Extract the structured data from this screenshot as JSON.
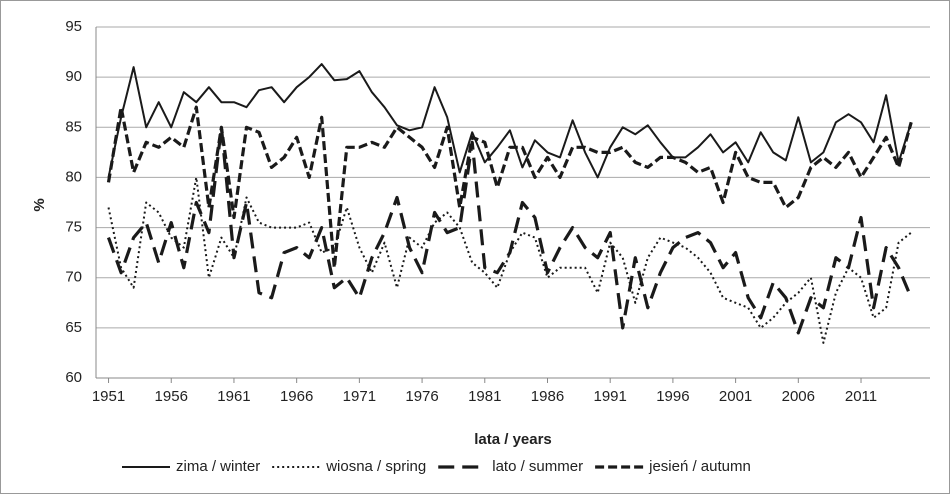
{
  "chart_data": {
    "type": "line",
    "ylabel": "%",
    "xlabel": "lata / years",
    "x": [
      1951,
      1952,
      1953,
      1954,
      1955,
      1956,
      1957,
      1958,
      1959,
      1960,
      1961,
      1962,
      1963,
      1964,
      1965,
      1966,
      1967,
      1968,
      1969,
      1970,
      1971,
      1972,
      1973,
      1974,
      1975,
      1976,
      1977,
      1978,
      1979,
      1980,
      1981,
      1982,
      1983,
      1984,
      1985,
      1986,
      1987,
      1988,
      1989,
      1990,
      1991,
      1992,
      1993,
      1994,
      1995,
      1996,
      1997,
      1998,
      1999,
      2000,
      2001,
      2002,
      2003,
      2004,
      2005,
      2006,
      2007,
      2008,
      2009,
      2010,
      2011,
      2012,
      2013,
      2014,
      2015
    ],
    "xlim": [
      1950,
      2016.5
    ],
    "xticks": [
      1951,
      1956,
      1961,
      1966,
      1971,
      1976,
      1981,
      1986,
      1991,
      1996,
      2001,
      2006,
      2011
    ],
    "ylim": [
      60,
      95
    ],
    "yticks": [
      60,
      65,
      70,
      75,
      80,
      85,
      90,
      95
    ],
    "grid": true,
    "legend": "bottom",
    "series": [
      {
        "name": "zima / winter",
        "color": "#1a1a1a",
        "values": [
          80,
          86,
          91,
          85,
          87.5,
          85,
          88.5,
          87.5,
          89,
          87.5,
          87.5,
          87,
          88.7,
          89,
          87.5,
          89,
          90,
          91.3,
          89.7,
          89.8,
          90.6,
          88.5,
          87,
          85.2,
          84.7,
          85,
          89,
          86,
          80.5,
          84.5,
          81.5,
          83,
          84.7,
          81,
          83.7,
          82.5,
          82,
          85.7,
          82.5,
          80,
          83,
          85,
          84.3,
          85.2,
          83.5,
          82,
          82,
          83,
          84.3,
          82.5,
          83.5,
          81.5,
          84.5,
          82.5,
          81.7,
          86,
          81.5,
          82.5,
          85.5,
          86.3,
          85.5,
          83.5,
          88.2,
          81.5,
          85.5
        ]
      },
      {
        "name": "wiosna / spring",
        "color": "#1a1a1a",
        "values": [
          77,
          71,
          69,
          77.5,
          76.5,
          74,
          73,
          80,
          70,
          74,
          72,
          78,
          75.5,
          75,
          75,
          75,
          75.5,
          72.5,
          73,
          77,
          73,
          70.5,
          73.5,
          69,
          74,
          73,
          75.5,
          76.5,
          75,
          71.5,
          70.5,
          69,
          72.5,
          74.5,
          74,
          70,
          71,
          71,
          71,
          68.5,
          73.5,
          72,
          67.5,
          72,
          74,
          73.5,
          73,
          72,
          70.5,
          68,
          67.5,
          67,
          65,
          66,
          67.5,
          68.5,
          70,
          63.5,
          68.5,
          71,
          70,
          66,
          67,
          73.5,
          74.5
        ]
      },
      {
        "name": "lato / summer",
        "color": "#1a1a1a",
        "values": [
          74,
          70.5,
          74,
          75.5,
          71.5,
          75.5,
          71,
          77.5,
          74.5,
          85,
          72,
          77.5,
          68.5,
          68,
          72.5,
          73,
          72,
          75,
          69,
          70,
          68,
          72,
          74.5,
          78,
          73,
          70.5,
          76.5,
          74.5,
          75,
          83.5,
          71,
          70.5,
          72.5,
          77.5,
          76,
          70.5,
          73,
          75,
          73,
          72,
          74.5,
          65,
          72,
          67,
          70.5,
          73,
          74,
          74.5,
          73.5,
          71,
          72.5,
          68,
          66,
          69.5,
          68,
          64.5,
          68,
          67,
          72,
          71,
          76,
          67,
          73,
          71,
          68
        ]
      },
      {
        "name": "jesień / autumn",
        "color": "#1a1a1a",
        "values": [
          79.5,
          87,
          80.5,
          83.5,
          83,
          84,
          83,
          87,
          77,
          85,
          76,
          85,
          84.5,
          81,
          82,
          84,
          80,
          86,
          71,
          83,
          83,
          83.5,
          83,
          85,
          84,
          83,
          81,
          85,
          77,
          84,
          83.5,
          79,
          83,
          83,
          80,
          82,
          80,
          83,
          83,
          82.5,
          82.5,
          83,
          81.5,
          81,
          82,
          82,
          81.5,
          80.5,
          81,
          77.5,
          82.5,
          80,
          79.5,
          79.5,
          77,
          78,
          81,
          82,
          81,
          82.5,
          80,
          82,
          84,
          81,
          85.5
        ]
      }
    ]
  }
}
